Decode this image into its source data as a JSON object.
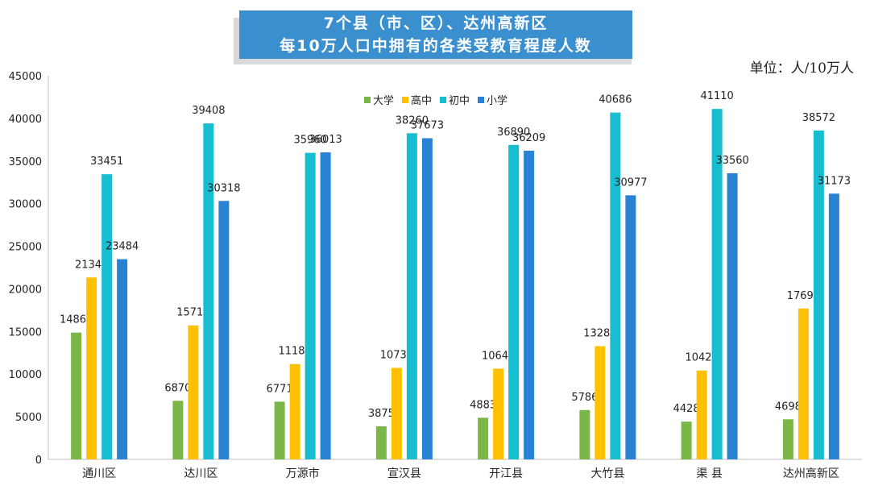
{
  "title": {
    "line1": "7个县（市、区）、达州高新区",
    "line2": "每10万人口中拥有的各类受教育程度人数"
  },
  "unit_label": "单位：人/10万人",
  "chart_data": {
    "type": "bar",
    "categories": [
      "通川区",
      "达川区",
      "万源市",
      "宣汉县",
      "开江县",
      "大竹县",
      "渠  县",
      "达州高新区"
    ],
    "series": [
      {
        "name": "大学",
        "color": "#7ab648",
        "values": [
          14867,
          6870,
          6771,
          3875,
          4883,
          5786,
          4428,
          4698
        ]
      },
      {
        "name": "高中",
        "color": "#ffc000",
        "values": [
          21340,
          15719,
          11180,
          10730,
          10642,
          13280,
          10426,
          17696
        ]
      },
      {
        "name": "初中",
        "color": "#17becf",
        "values": [
          33451,
          39408,
          35960,
          38260,
          36890,
          40686,
          41110,
          38572
        ]
      },
      {
        "name": "小学",
        "color": "#2a82d3",
        "values": [
          23484,
          30318,
          36013,
          37673,
          36209,
          30977,
          33560,
          31173
        ]
      }
    ],
    "ylim": [
      0,
      45000
    ],
    "yticks": [
      "0",
      "5000",
      "10000",
      "15000",
      "20000",
      "25000",
      "30000",
      "35000",
      "40000",
      "45000"
    ],
    "grid": false,
    "legend_position": "top-center"
  }
}
